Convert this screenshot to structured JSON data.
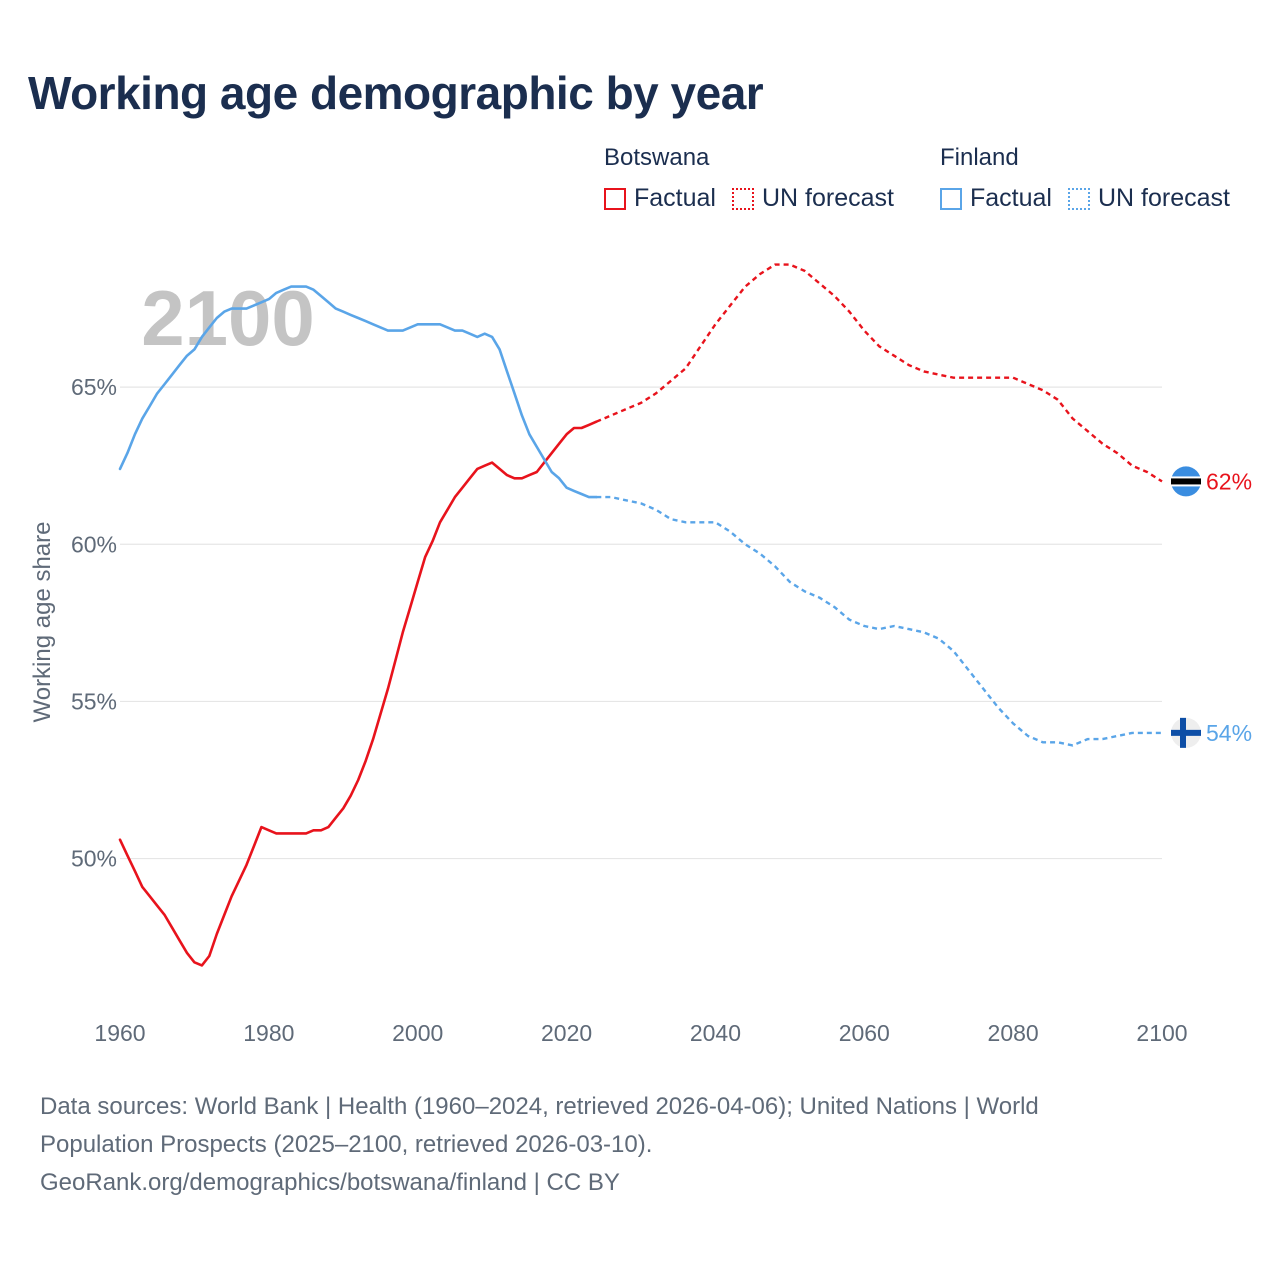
{
  "title": "Working age demographic by year",
  "legend": [
    {
      "country": "Botswana",
      "color": "#e8131c",
      "items": [
        "Factual",
        "UN forecast"
      ]
    },
    {
      "country": "Finland",
      "color": "#5aa5e8",
      "items": [
        "Factual",
        "UN forecast"
      ]
    }
  ],
  "footer": {
    "line1": "Data sources: World Bank | Health (1960–2024, retrieved 2026-04-06); United Nations | World",
    "line2": "Population Prospects (2025–2100, retrieved 2026-03-10).",
    "line3": "GeoRank.org/demographics/botswana/finland | CC BY"
  },
  "chart_data": {
    "type": "line",
    "title": "Working age demographic by year",
    "xlabel": "",
    "ylabel": "Working age share",
    "year_watermark": "2100",
    "xlim": [
      1960,
      2100
    ],
    "ylim": [
      45.5,
      70
    ],
    "x_ticks": [
      1960,
      1980,
      2000,
      2020,
      2040,
      2060,
      2080,
      2100
    ],
    "y_ticks": [
      50,
      55,
      60,
      65
    ],
    "y_tick_labels": [
      "50%",
      "55%",
      "60%",
      "65%"
    ],
    "factual_end_year": 2024,
    "series": [
      {
        "name": "Botswana",
        "color": "#e8131c",
        "end_label": "62%",
        "points": [
          [
            1960,
            50.6
          ],
          [
            1961,
            50.1
          ],
          [
            1962,
            49.6
          ],
          [
            1963,
            49.1
          ],
          [
            1964,
            48.8
          ],
          [
            1965,
            48.5
          ],
          [
            1966,
            48.2
          ],
          [
            1967,
            47.8
          ],
          [
            1968,
            47.4
          ],
          [
            1969,
            47.0
          ],
          [
            1970,
            46.7
          ],
          [
            1971,
            46.6
          ],
          [
            1972,
            46.9
          ],
          [
            1973,
            47.6
          ],
          [
            1974,
            48.2
          ],
          [
            1975,
            48.8
          ],
          [
            1976,
            49.3
          ],
          [
            1977,
            49.8
          ],
          [
            1978,
            50.4
          ],
          [
            1979,
            51.0
          ],
          [
            1980,
            50.9
          ],
          [
            1981,
            50.8
          ],
          [
            1982,
            50.8
          ],
          [
            1983,
            50.8
          ],
          [
            1984,
            50.8
          ],
          [
            1985,
            50.8
          ],
          [
            1986,
            50.9
          ],
          [
            1987,
            50.9
          ],
          [
            1988,
            51.0
          ],
          [
            1989,
            51.3
          ],
          [
            1990,
            51.6
          ],
          [
            1991,
            52.0
          ],
          [
            1992,
            52.5
          ],
          [
            1993,
            53.1
          ],
          [
            1994,
            53.8
          ],
          [
            1995,
            54.6
          ],
          [
            1996,
            55.4
          ],
          [
            1997,
            56.3
          ],
          [
            1998,
            57.2
          ],
          [
            1999,
            58.0
          ],
          [
            2000,
            58.8
          ],
          [
            2001,
            59.6
          ],
          [
            2002,
            60.1
          ],
          [
            2003,
            60.7
          ],
          [
            2004,
            61.1
          ],
          [
            2005,
            61.5
          ],
          [
            2006,
            61.8
          ],
          [
            2007,
            62.1
          ],
          [
            2008,
            62.4
          ],
          [
            2009,
            62.5
          ],
          [
            2010,
            62.6
          ],
          [
            2011,
            62.4
          ],
          [
            2012,
            62.2
          ],
          [
            2013,
            62.1
          ],
          [
            2014,
            62.1
          ],
          [
            2015,
            62.2
          ],
          [
            2016,
            62.3
          ],
          [
            2017,
            62.6
          ],
          [
            2018,
            62.9
          ],
          [
            2019,
            63.2
          ],
          [
            2020,
            63.5
          ],
          [
            2021,
            63.7
          ],
          [
            2022,
            63.7
          ],
          [
            2023,
            63.8
          ],
          [
            2024,
            63.9
          ],
          [
            2025,
            64.0
          ],
          [
            2026,
            64.1
          ],
          [
            2028,
            64.3
          ],
          [
            2030,
            64.5
          ],
          [
            2032,
            64.8
          ],
          [
            2034,
            65.2
          ],
          [
            2036,
            65.6
          ],
          [
            2038,
            66.3
          ],
          [
            2040,
            67.0
          ],
          [
            2042,
            67.6
          ],
          [
            2044,
            68.2
          ],
          [
            2046,
            68.6
          ],
          [
            2048,
            68.9
          ],
          [
            2050,
            68.9
          ],
          [
            2052,
            68.7
          ],
          [
            2054,
            68.3
          ],
          [
            2056,
            67.9
          ],
          [
            2058,
            67.4
          ],
          [
            2060,
            66.8
          ],
          [
            2062,
            66.3
          ],
          [
            2064,
            66.0
          ],
          [
            2066,
            65.7
          ],
          [
            2068,
            65.5
          ],
          [
            2070,
            65.4
          ],
          [
            2072,
            65.3
          ],
          [
            2074,
            65.3
          ],
          [
            2076,
            65.3
          ],
          [
            2078,
            65.3
          ],
          [
            2080,
            65.3
          ],
          [
            2082,
            65.1
          ],
          [
            2084,
            64.9
          ],
          [
            2086,
            64.6
          ],
          [
            2088,
            64.0
          ],
          [
            2090,
            63.6
          ],
          [
            2092,
            63.2
          ],
          [
            2094,
            62.9
          ],
          [
            2096,
            62.5
          ],
          [
            2098,
            62.3
          ],
          [
            2100,
            62.0
          ]
        ]
      },
      {
        "name": "Finland",
        "color": "#5aa5e8",
        "end_label": "54%",
        "points": [
          [
            1960,
            62.4
          ],
          [
            1961,
            62.9
          ],
          [
            1962,
            63.5
          ],
          [
            1963,
            64.0
          ],
          [
            1964,
            64.4
          ],
          [
            1965,
            64.8
          ],
          [
            1966,
            65.1
          ],
          [
            1967,
            65.4
          ],
          [
            1968,
            65.7
          ],
          [
            1969,
            66.0
          ],
          [
            1970,
            66.2
          ],
          [
            1971,
            66.6
          ],
          [
            1972,
            66.9
          ],
          [
            1973,
            67.2
          ],
          [
            1974,
            67.4
          ],
          [
            1975,
            67.5
          ],
          [
            1976,
            67.5
          ],
          [
            1977,
            67.5
          ],
          [
            1978,
            67.6
          ],
          [
            1979,
            67.7
          ],
          [
            1980,
            67.8
          ],
          [
            1981,
            68.0
          ],
          [
            1982,
            68.1
          ],
          [
            1983,
            68.2
          ],
          [
            1984,
            68.2
          ],
          [
            1985,
            68.2
          ],
          [
            1986,
            68.1
          ],
          [
            1987,
            67.9
          ],
          [
            1988,
            67.7
          ],
          [
            1989,
            67.5
          ],
          [
            1990,
            67.4
          ],
          [
            1991,
            67.3
          ],
          [
            1992,
            67.2
          ],
          [
            1993,
            67.1
          ],
          [
            1994,
            67.0
          ],
          [
            1995,
            66.9
          ],
          [
            1996,
            66.8
          ],
          [
            1997,
            66.8
          ],
          [
            1998,
            66.8
          ],
          [
            1999,
            66.9
          ],
          [
            2000,
            67.0
          ],
          [
            2001,
            67.0
          ],
          [
            2002,
            67.0
          ],
          [
            2003,
            67.0
          ],
          [
            2004,
            66.9
          ],
          [
            2005,
            66.8
          ],
          [
            2006,
            66.8
          ],
          [
            2007,
            66.7
          ],
          [
            2008,
            66.6
          ],
          [
            2009,
            66.7
          ],
          [
            2010,
            66.6
          ],
          [
            2011,
            66.2
          ],
          [
            2012,
            65.5
          ],
          [
            2013,
            64.8
          ],
          [
            2014,
            64.1
          ],
          [
            2015,
            63.5
          ],
          [
            2016,
            63.1
          ],
          [
            2017,
            62.7
          ],
          [
            2018,
            62.3
          ],
          [
            2019,
            62.1
          ],
          [
            2020,
            61.8
          ],
          [
            2021,
            61.7
          ],
          [
            2022,
            61.6
          ],
          [
            2023,
            61.5
          ],
          [
            2024,
            61.5
          ],
          [
            2026,
            61.5
          ],
          [
            2028,
            61.4
          ],
          [
            2030,
            61.3
          ],
          [
            2032,
            61.1
          ],
          [
            2034,
            60.8
          ],
          [
            2036,
            60.7
          ],
          [
            2038,
            60.7
          ],
          [
            2040,
            60.7
          ],
          [
            2042,
            60.4
          ],
          [
            2044,
            60.0
          ],
          [
            2046,
            59.7
          ],
          [
            2048,
            59.3
          ],
          [
            2050,
            58.8
          ],
          [
            2052,
            58.5
          ],
          [
            2054,
            58.3
          ],
          [
            2056,
            58.0
          ],
          [
            2058,
            57.6
          ],
          [
            2060,
            57.4
          ],
          [
            2062,
            57.3
          ],
          [
            2064,
            57.4
          ],
          [
            2066,
            57.3
          ],
          [
            2068,
            57.2
          ],
          [
            2070,
            57.0
          ],
          [
            2072,
            56.6
          ],
          [
            2074,
            56.0
          ],
          [
            2076,
            55.4
          ],
          [
            2078,
            54.8
          ],
          [
            2080,
            54.3
          ],
          [
            2082,
            53.9
          ],
          [
            2084,
            53.7
          ],
          [
            2086,
            53.7
          ],
          [
            2088,
            53.6
          ],
          [
            2090,
            53.8
          ],
          [
            2092,
            53.8
          ],
          [
            2094,
            53.9
          ],
          [
            2096,
            54.0
          ],
          [
            2098,
            54.0
          ],
          [
            2100,
            54.0
          ]
        ]
      }
    ]
  }
}
